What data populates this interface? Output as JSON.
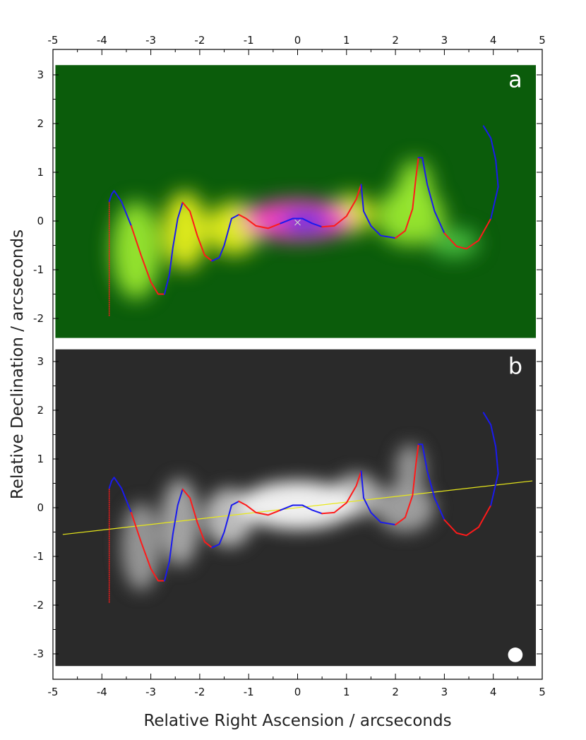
{
  "chart_data": {
    "type": "line",
    "xlabel": "Relative Right Ascension / arcseconds",
    "ylabel": "Relative Declination / arcseconds",
    "xlim": [
      -5,
      5
    ],
    "ylim": [
      -3.4,
      3.4
    ],
    "x_ticks": [
      -5,
      -4,
      -3,
      -2,
      -1,
      0,
      1,
      2,
      3,
      4,
      5
    ],
    "y_ticks": [
      -3,
      -2,
      -1,
      0,
      1,
      2,
      3
    ],
    "grid": false,
    "panels": [
      {
        "letter": "a",
        "colormap": "green-yellow-magenta-blue",
        "background_color": "#0b5c0b",
        "image_extent": {
          "x": [
            -4.95,
            4.87
          ],
          "y": [
            -2.4,
            3.2
          ]
        },
        "sky_blobs": [
          {
            "x": 0.0,
            "y": 0.02,
            "rx": 1.15,
            "ry": 0.42,
            "level": 0.95
          },
          {
            "x": 0.15,
            "y": -0.02,
            "rx": 0.5,
            "ry": 0.22,
            "level": 1.0
          },
          {
            "x": -1.3,
            "y": -0.15,
            "rx": 0.55,
            "ry": 0.55,
            "level": 0.6
          },
          {
            "x": 1.1,
            "y": 0.15,
            "rx": 0.45,
            "ry": 0.4,
            "level": 0.55
          },
          {
            "x": -2.3,
            "y": -0.2,
            "rx": 0.45,
            "ry": 0.8,
            "level": 0.5
          },
          {
            "x": -3.3,
            "y": -0.6,
            "rx": 0.5,
            "ry": 1.0,
            "level": 0.4
          },
          {
            "x": 2.3,
            "y": 0.1,
            "rx": 0.7,
            "ry": 0.6,
            "level": 0.45
          },
          {
            "x": 2.4,
            "y": 0.7,
            "rx": 0.35,
            "ry": 0.55,
            "level": 0.4
          },
          {
            "x": 3.2,
            "y": -0.45,
            "rx": 0.5,
            "ry": 0.3,
            "level": 0.3
          }
        ],
        "marker": {
          "x": 0.0,
          "y": -0.03,
          "symbol": "x"
        }
      },
      {
        "letter": "b",
        "colormap": "greyscale",
        "background_color": "#2a2a2a",
        "image_extent": {
          "x": [
            -4.95,
            4.87
          ],
          "y": [
            -3.25,
            3.25
          ]
        },
        "sky_blobs": [
          {
            "x": 0.0,
            "y": 0.05,
            "rx": 1.2,
            "ry": 0.5,
            "level": 1.0
          },
          {
            "x": -1.4,
            "y": -0.2,
            "rx": 0.5,
            "ry": 0.6,
            "level": 0.65
          },
          {
            "x": 1.2,
            "y": 0.25,
            "rx": 0.5,
            "ry": 0.45,
            "level": 0.6
          },
          {
            "x": -2.4,
            "y": -0.3,
            "rx": 0.4,
            "ry": 0.9,
            "level": 0.5
          },
          {
            "x": -3.2,
            "y": -0.8,
            "rx": 0.4,
            "ry": 0.9,
            "level": 0.4
          },
          {
            "x": 2.2,
            "y": 0.0,
            "rx": 0.6,
            "ry": 0.5,
            "level": 0.45
          },
          {
            "x": 2.3,
            "y": 0.8,
            "rx": 0.3,
            "ry": 0.5,
            "level": 0.4
          }
        ],
        "beam": {
          "x": 4.45,
          "y": -3.02,
          "r": 0.15,
          "color": "#ffffff"
        },
        "jet_axis": {
          "x": [
            -4.8,
            4.8
          ],
          "y": [
            -0.55,
            0.55
          ],
          "color": "#e8e81a"
        }
      }
    ],
    "series": [
      {
        "x": [
          -3.85,
          -3.8,
          -3.75,
          -3.6,
          -3.4,
          -3.2,
          -3.0,
          -2.85,
          -2.72,
          -2.62,
          -2.55,
          -2.45,
          -2.35,
          -2.2,
          -2.05,
          -1.9,
          -1.75,
          -1.6,
          -1.5,
          -1.35,
          -1.2,
          -1.05,
          -0.85,
          -0.6,
          -0.35,
          -0.1,
          0.1,
          0.3,
          0.5,
          0.75,
          1.0,
          1.2,
          1.3,
          1.35,
          1.5,
          1.7,
          2.0,
          2.2,
          2.35,
          2.42,
          2.47,
          2.55,
          2.65,
          2.8,
          3.0,
          3.25,
          3.45,
          3.7,
          3.95,
          4.1,
          4.05,
          3.95,
          3.8
        ],
        "y": [
          0.4,
          0.55,
          0.62,
          0.4,
          -0.1,
          -0.7,
          -1.25,
          -1.5,
          -1.5,
          -1.1,
          -0.55,
          0.05,
          0.38,
          0.2,
          -0.3,
          -0.7,
          -0.82,
          -0.75,
          -0.5,
          0.05,
          0.13,
          0.05,
          -0.1,
          -0.15,
          -0.05,
          0.05,
          0.05,
          -0.05,
          -0.12,
          -0.1,
          0.1,
          0.45,
          0.75,
          0.2,
          -0.1,
          -0.3,
          -0.35,
          -0.2,
          0.25,
          0.9,
          1.3,
          1.3,
          0.75,
          0.2,
          -0.25,
          -0.52,
          -0.57,
          -0.4,
          0.05,
          0.7,
          1.25,
          1.7,
          1.95
        ],
        "color_alternating": [
          "#ff1a1a",
          "#1a1aee"
        ]
      }
    ],
    "vertical_strand": {
      "x": -3.85,
      "y": [
        -1.95,
        0.4
      ]
    }
  }
}
